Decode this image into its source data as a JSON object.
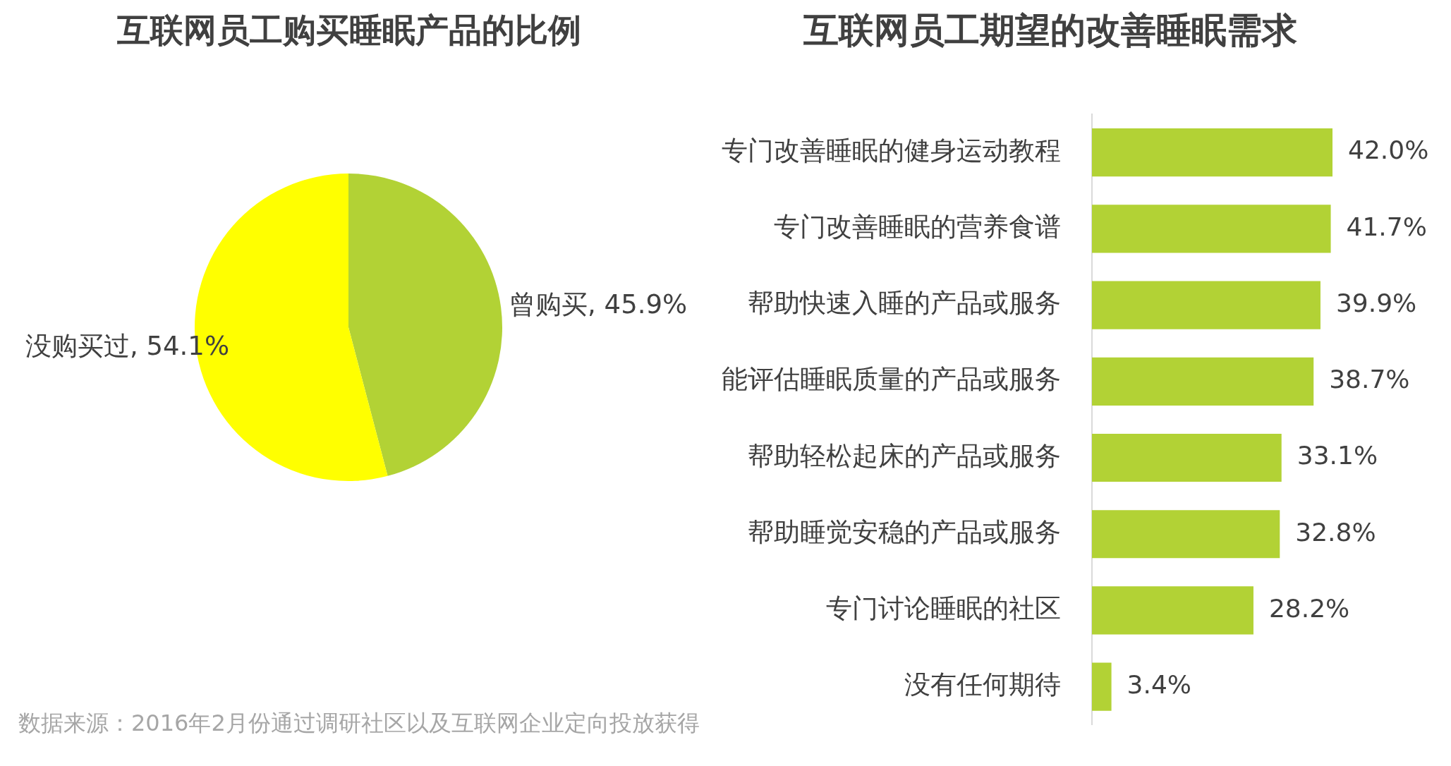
{
  "chart_data": [
    {
      "type": "pie",
      "title": "互联网员工购买睡眠产品的比例",
      "categories": [
        "曾购买",
        "没购买过"
      ],
      "values": [
        45.9,
        54.1
      ],
      "colors": [
        "#b2d235",
        "#ffff00"
      ],
      "value_labels": [
        "45.9%",
        "54.1%"
      ],
      "annotations": [
        "数据来源：2016年2月份通过调研社区以及互联网企业定向投放获得"
      ]
    },
    {
      "type": "bar",
      "orientation": "horizontal",
      "title": "互联网员工期望的改善睡眠需求",
      "categories": [
        "专门改善睡眠的健身运动教程",
        "专门改善睡眠的营养食谱",
        "帮助快速入睡的产品或服务",
        "能评估睡眠质量的产品或服务",
        "帮助轻松起床的产品或服务",
        "帮助睡觉安稳的产品或服务",
        "专门讨论睡眠的社区",
        "没有任何期待"
      ],
      "values": [
        42.0,
        41.7,
        39.9,
        38.7,
        33.1,
        32.8,
        28.2,
        3.4
      ],
      "color": "#b2d235",
      "value_labels": [
        "42.0%",
        "41.7%",
        "39.9%",
        "38.7%",
        "33.1%",
        "32.8%",
        "28.2%",
        "3.4%"
      ]
    }
  ]
}
